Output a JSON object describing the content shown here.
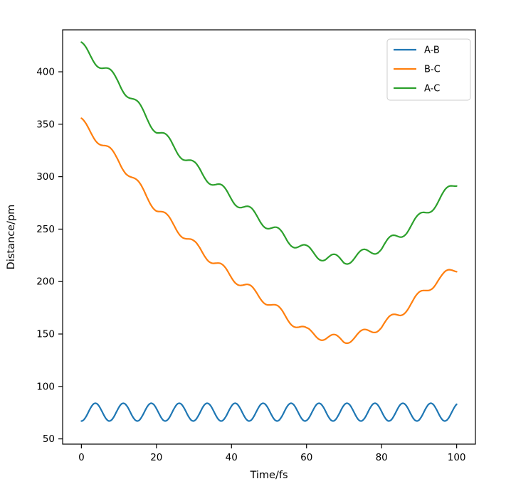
{
  "figure": {
    "background": "#ffffff",
    "spine_color": "#000000",
    "text_color": "#000000"
  },
  "chart_data": {
    "type": "line",
    "title": "",
    "xlabel": "Time/fs",
    "ylabel": "Distance/pm",
    "xlim": [
      -5,
      105
    ],
    "ylim": [
      45,
      440
    ],
    "xticks": [
      0,
      20,
      40,
      60,
      80,
      100
    ],
    "yticks": [
      50,
      100,
      150,
      200,
      250,
      300,
      350,
      400
    ],
    "grid": false,
    "legend": {
      "position": "upper right",
      "edge_color": "#cccccc",
      "fill": "#ffffff",
      "entries": [
        "A-B",
        "B-C",
        "A-C"
      ]
    },
    "sample_step_fs": 0.25,
    "series": [
      {
        "name": "A-B",
        "color": "#1f77b4",
        "description": "Bond distance oscillating around 75 pm for full 0-100 fs range",
        "trend": [
          [
            0,
            75.5
          ],
          [
            100,
            75.5
          ]
        ],
        "oscillation": {
          "amplitude": 8.5,
          "period_fs": 7.45,
          "phase_rad": -1.5708
        }
      },
      {
        "name": "B-C",
        "color": "#ff7f0e",
        "description": "Distance decreasing from ~352 pm to minimum ~145 pm near 68 fs, then rising to ~212 pm at 100 fs, with superimposed vibration",
        "trend": [
          [
            0,
            352
          ],
          [
            10,
            315
          ],
          [
            20,
            270
          ],
          [
            30,
            235
          ],
          [
            40,
            205
          ],
          [
            50,
            180
          ],
          [
            55,
            165
          ],
          [
            60,
            152
          ],
          [
            65,
            147
          ],
          [
            70,
            144
          ],
          [
            75,
            150
          ],
          [
            80,
            158
          ],
          [
            85,
            170
          ],
          [
            90,
            186
          ],
          [
            95,
            202
          ],
          [
            100,
            212
          ]
        ],
        "oscillation": {
          "amplitude": 4.0,
          "period_fs": 7.45,
          "phase_rad": 1.2
        }
      },
      {
        "name": "A-C",
        "color": "#2ca02c",
        "description": "Distance decreasing from ~425 pm to minimum ~220 pm near 68 fs, then rising to ~295 pm at 100 fs, with superimposed vibration",
        "trend": [
          [
            0,
            424
          ],
          [
            10,
            390
          ],
          [
            20,
            345
          ],
          [
            30,
            310
          ],
          [
            40,
            280
          ],
          [
            50,
            253
          ],
          [
            55,
            240
          ],
          [
            60,
            230
          ],
          [
            65,
            223
          ],
          [
            70,
            220
          ],
          [
            75,
            226
          ],
          [
            80,
            233
          ],
          [
            85,
            245
          ],
          [
            90,
            260
          ],
          [
            95,
            277
          ],
          [
            100,
            294
          ]
        ],
        "oscillation": {
          "amplitude": 4.5,
          "period_fs": 7.45,
          "phase_rad": 1.2
        }
      }
    ]
  }
}
